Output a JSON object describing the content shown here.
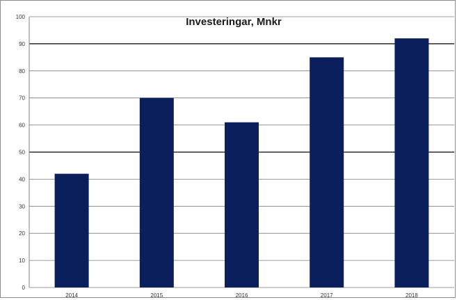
{
  "chart_data": {
    "type": "bar",
    "title": "Investeringar, Mnkr",
    "categories": [
      "2014",
      "2015",
      "2016",
      "2017",
      "2018"
    ],
    "values": [
      42,
      70,
      61,
      85,
      92
    ],
    "xlabel": "",
    "ylabel": "",
    "ylim": [
      0,
      100
    ],
    "yticks": [
      "0",
      "10",
      "20",
      "30",
      "40",
      "50",
      "60",
      "70",
      "80",
      "90",
      "100"
    ],
    "emphasized_gridlines": [
      50,
      90
    ],
    "grid": true,
    "legend": "none",
    "bar_color": "#0b1f5c"
  }
}
